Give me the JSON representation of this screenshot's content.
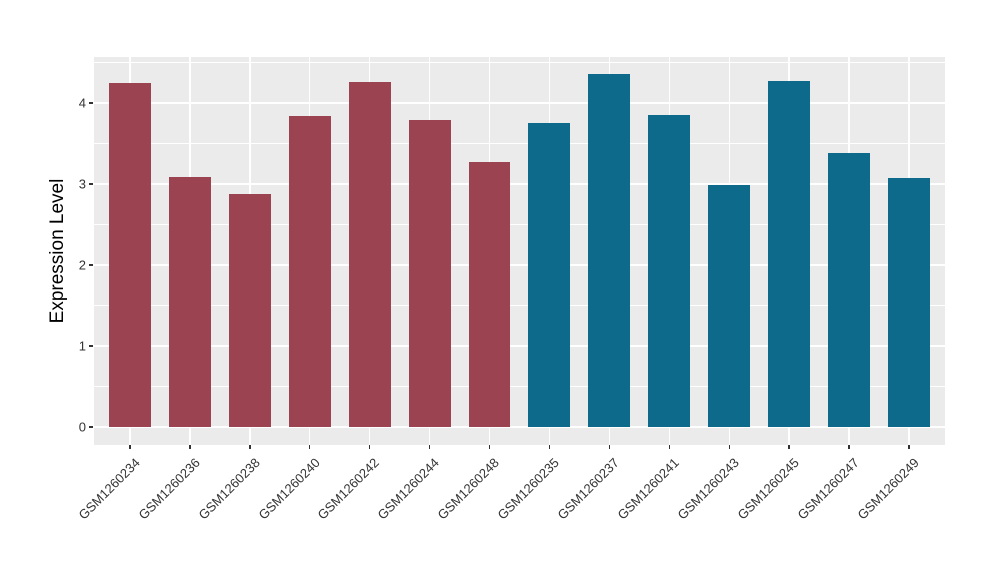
{
  "chart_data": {
    "type": "bar",
    "title": "",
    "xlabel": "",
    "ylabel": "Expression Level",
    "categories": [
      "GSM1260234",
      "GSM1260236",
      "GSM1260238",
      "GSM1260240",
      "GSM1260242",
      "GSM1260244",
      "GSM1260248",
      "GSM1260235",
      "GSM1260237",
      "GSM1260241",
      "GSM1260243",
      "GSM1260245",
      "GSM1260247",
      "GSM1260249"
    ],
    "values": [
      4.25,
      3.09,
      2.88,
      3.84,
      4.26,
      3.79,
      3.27,
      3.76,
      4.36,
      3.85,
      2.99,
      4.27,
      3.38,
      3.08
    ],
    "bar_colors": [
      "#9B4351",
      "#9B4351",
      "#9B4351",
      "#9B4351",
      "#9B4351",
      "#9B4351",
      "#9B4351",
      "#0E6A8B",
      "#0E6A8B",
      "#0E6A8B",
      "#0E6A8B",
      "#0E6A8B",
      "#0E6A8B",
      "#0E6A8B"
    ],
    "groups": [
      {
        "color": "#9B4351",
        "samples": [
          "GSM1260234",
          "GSM1260236",
          "GSM1260238",
          "GSM1260240",
          "GSM1260242",
          "GSM1260244",
          "GSM1260248"
        ]
      },
      {
        "color": "#0E6A8B",
        "samples": [
          "GSM1260235",
          "GSM1260237",
          "GSM1260241",
          "GSM1260243",
          "GSM1260245",
          "GSM1260247",
          "GSM1260249"
        ]
      }
    ],
    "y_ticks": [
      0,
      1,
      2,
      3,
      4
    ],
    "y_minor_ticks": [
      0.5,
      1.5,
      2.5,
      3.5,
      4.5
    ],
    "ylim": [
      -0.22,
      4.57
    ],
    "grid": true,
    "legend_position": "none",
    "style": {
      "panel_bg": "#EBEBEB",
      "grid_color": "#FFFFFF",
      "tick_text_color": "#333333",
      "axis_title_color": "#000000",
      "tick_mark_color": "#333333",
      "figure_bg": "#FFFFFF"
    }
  }
}
